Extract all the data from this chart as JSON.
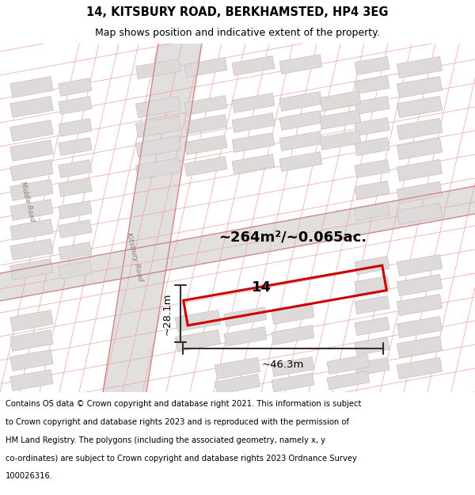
{
  "title_line1": "14, KITSBURY ROAD, BERKHAMSTED, HP4 3EG",
  "title_line2": "Map shows position and indicative extent of the property.",
  "footer_lines": [
    "Contains OS data © Crown copyright and database right 2021. This information is subject",
    "to Crown copyright and database rights 2023 and is reproduced with the permission of",
    "HM Land Registry. The polygons (including the associated geometry, namely x, y",
    "co-ordinates) are subject to Crown copyright and database rights 2023 Ordnance Survey",
    "100026316."
  ],
  "area_label": "~264m²/~0.065ac.",
  "width_label": "~46.3m",
  "height_label": "~28.1m",
  "property_number": "14",
  "map_bg": "#eeecec",
  "bld_fill": "#dedad9",
  "bld_edge": "#c8c0c0",
  "red_color": "#cc0000",
  "pink_color": "#f0a8a8",
  "dark_color": "#303030",
  "road_fill": "#e2dfdf",
  "title_fontsize": 10.5,
  "subtitle_fontsize": 9,
  "footer_fontsize": 7.2,
  "area_fontsize": 13,
  "label_fontsize": 9.5,
  "propnum_fontsize": 13
}
